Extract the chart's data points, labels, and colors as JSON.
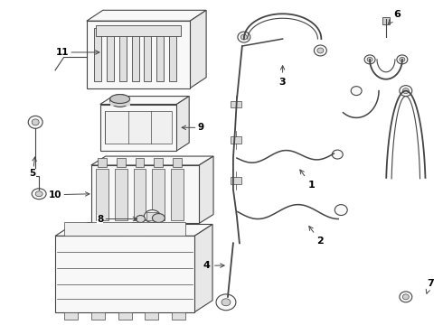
{
  "background_color": "#ffffff",
  "line_color": "#444444",
  "label_color": "#000000",
  "fig_width": 4.9,
  "fig_height": 3.6,
  "dpi": 100,
  "border_color": "#cccccc"
}
